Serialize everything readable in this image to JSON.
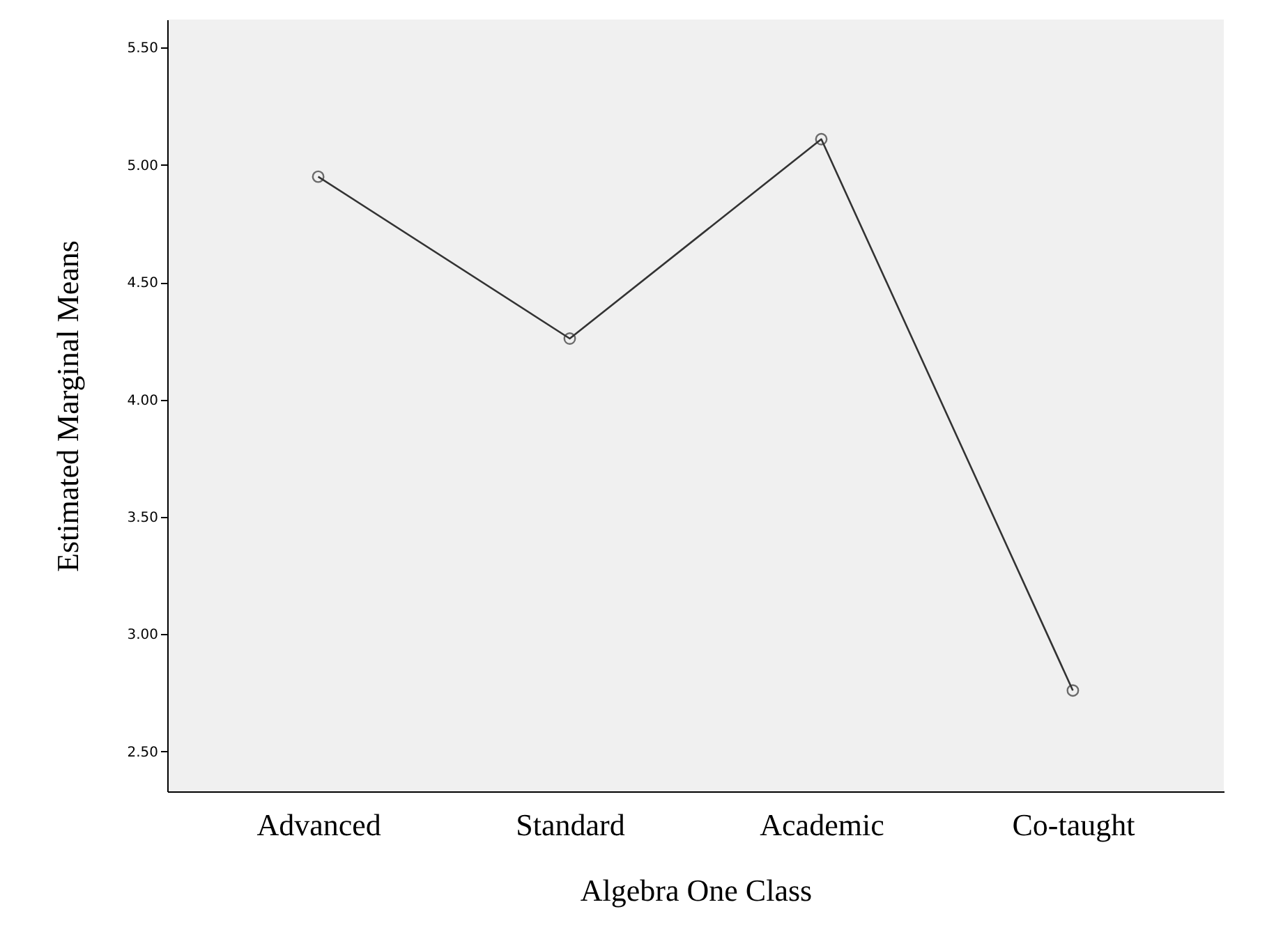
{
  "chart_data": {
    "type": "line",
    "xlabel": "Algebra One Class",
    "ylabel": "Estimated Marginal Means",
    "categories": [
      "Advanced",
      "Standard",
      "Academic",
      "Co-taught"
    ],
    "series": [
      {
        "color": "#333333",
        "values": [
          4.95,
          4.26,
          5.11,
          2.76
        ]
      }
    ],
    "ylim": [
      2.33,
      5.62
    ],
    "yticks": [
      {
        "value": 2.5,
        "label": "2.50"
      },
      {
        "value": 3,
        "label": "3.00"
      },
      {
        "value": 3.5,
        "label": "3.50"
      },
      {
        "value": 4,
        "label": "4.00"
      },
      {
        "value": 4.5,
        "label": "4.50"
      },
      {
        "value": 5,
        "label": "5.00"
      },
      {
        "value": 5.5,
        "label": "5.50"
      }
    ],
    "grid": false,
    "marker": "circle",
    "line_style": "solid"
  }
}
